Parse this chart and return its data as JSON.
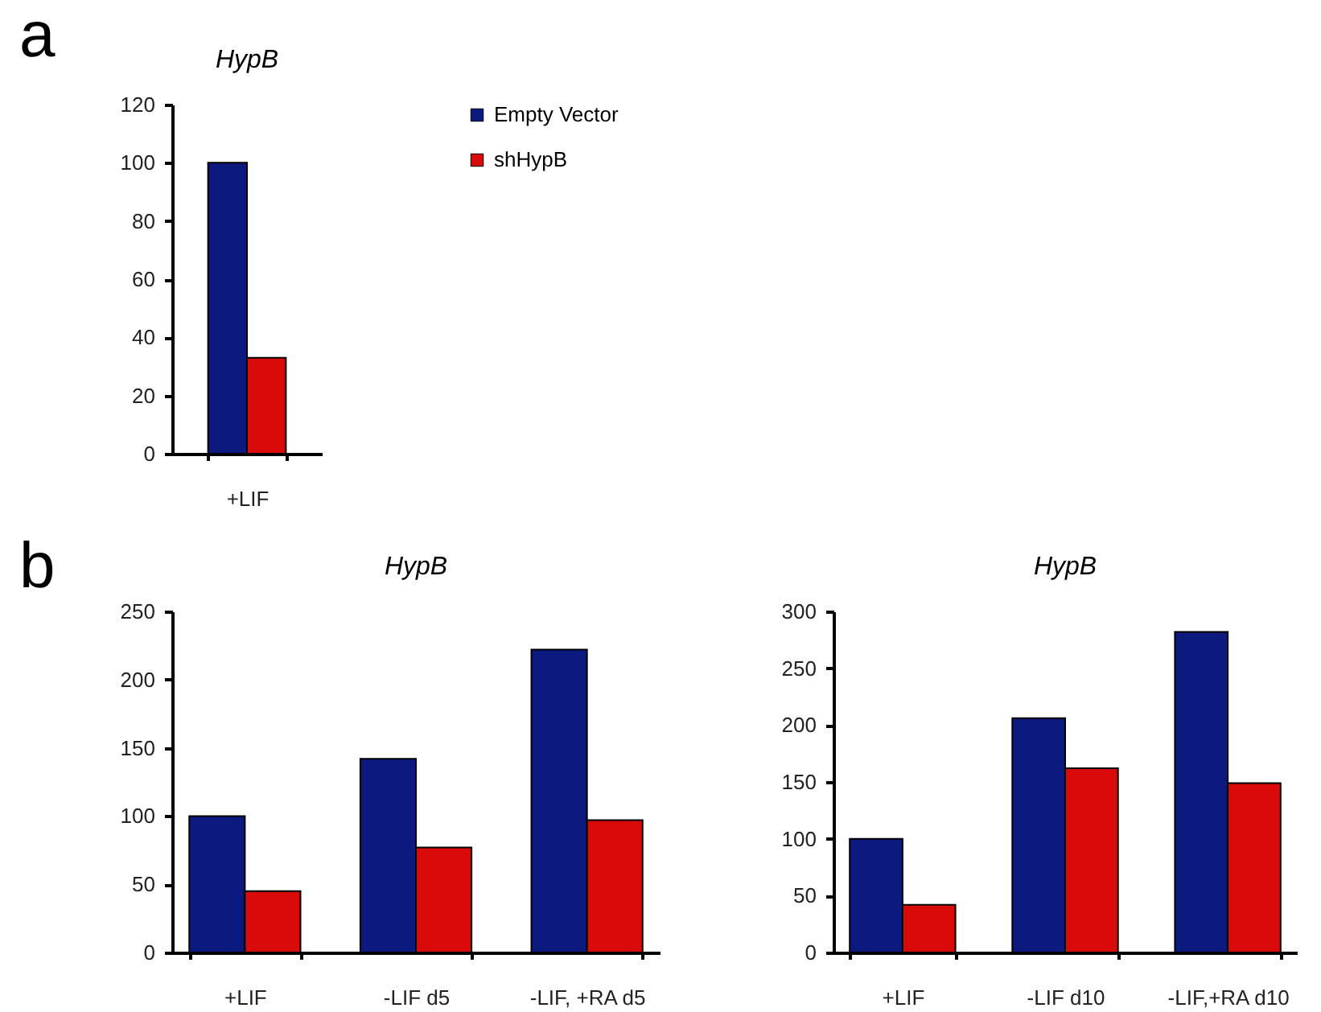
{
  "chart_data": [
    {
      "type": "bar",
      "title": "HypB",
      "annotations": [
        "a"
      ],
      "categories": [
        "+LIF"
      ],
      "series": [
        {
          "name": "Empty Vector",
          "color": "#0c1a80",
          "values": [
            100
          ]
        },
        {
          "name": "shHypB",
          "color": "#d90a0a",
          "values": [
            33
          ]
        }
      ],
      "ylim": [
        0,
        120
      ],
      "yticks": [
        0,
        20,
        40,
        60,
        80,
        100,
        120
      ],
      "legend": "right"
    },
    {
      "type": "bar",
      "title": "HypB",
      "annotations": [
        "b"
      ],
      "categories": [
        "+LIF",
        "-LIF d5",
        "-LIF, +RA d5"
      ],
      "series": [
        {
          "color": "#0c1a80",
          "values": [
            100,
            142,
            222
          ]
        },
        {
          "color": "#d90a0a",
          "values": [
            45,
            77,
            97
          ]
        }
      ],
      "ylim": [
        0,
        250
      ],
      "yticks": [
        0,
        50,
        100,
        150,
        200,
        250
      ]
    },
    {
      "type": "bar",
      "title": "HypB",
      "categories": [
        "+LIF",
        "-LIF d10",
        "-LIF,+RA d10"
      ],
      "series": [
        {
          "color": "#0c1a80",
          "values": [
            100,
            206,
            282
          ]
        },
        {
          "color": "#d90a0a",
          "values": [
            42,
            162,
            149
          ]
        }
      ],
      "ylim": [
        0,
        300
      ],
      "yticks": [
        0,
        50,
        100,
        150,
        200,
        250,
        300
      ]
    }
  ]
}
